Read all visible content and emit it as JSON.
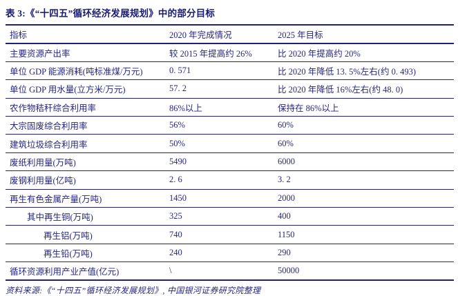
{
  "title": "表 3:《“十四五”循环经济发展规划》中的部分目标",
  "colors": {
    "ink": "#26267f",
    "border": "#20207a",
    "background": "#ffffff"
  },
  "table": {
    "columns": [
      "指标",
      "2020 年完成情况",
      "2025 年目标"
    ],
    "rows": [
      {
        "indicator": "主要资源产出率",
        "completed_2020": "较 2015 年提高约 26%",
        "target_2025": "比 2020 年提高约 20%",
        "indent": 0
      },
      {
        "indicator": "单位 GDP 能源消耗(吨标准煤/万元)",
        "completed_2020": "0. 571",
        "target_2025": "比 2020 年降低 13. 5%左右(约 0. 493)",
        "indent": 0
      },
      {
        "indicator": "单位 GDP 用水量(立方米/万元)",
        "completed_2020": "57. 2",
        "target_2025": "比 2020 年降低 16%左右(约 48. 0)",
        "indent": 0
      },
      {
        "indicator": "农作物秸秆综合利用率",
        "completed_2020": "86%以上",
        "target_2025": "保持在 86%以上",
        "indent": 0
      },
      {
        "indicator": "大宗固废综合利用率",
        "completed_2020": "56%",
        "target_2025": "60%",
        "indent": 0
      },
      {
        "indicator": "建筑垃圾综合利用率",
        "completed_2020": "50%",
        "target_2025": "60%",
        "indent": 0
      },
      {
        "indicator": "废纸利用量(万吨)",
        "completed_2020": "5490",
        "target_2025": "6000",
        "indent": 0
      },
      {
        "indicator": "废钢利用量(亿吨)",
        "completed_2020": "2. 6",
        "target_2025": "3. 2",
        "indent": 0
      },
      {
        "indicator": "再生有色金属产量(万吨)",
        "completed_2020": "1450",
        "target_2025": "2000",
        "indent": 0
      },
      {
        "indicator": "其中再生铜(万吨)",
        "completed_2020": "325",
        "target_2025": "400",
        "indent": 1
      },
      {
        "indicator": "再生铝(万吨)",
        "completed_2020": "740",
        "target_2025": "1150",
        "indent": 2
      },
      {
        "indicator": "再生铅(万吨)",
        "completed_2020": "240",
        "target_2025": "290",
        "indent": 2
      },
      {
        "indicator": "循环资源利用产业产值(亿元)",
        "completed_2020": "\\",
        "target_2025": "50000",
        "indent": 0
      }
    ]
  },
  "source": "资料来源:《“十四五”循环经济发展规划》, 中国银河证券研究院整理"
}
